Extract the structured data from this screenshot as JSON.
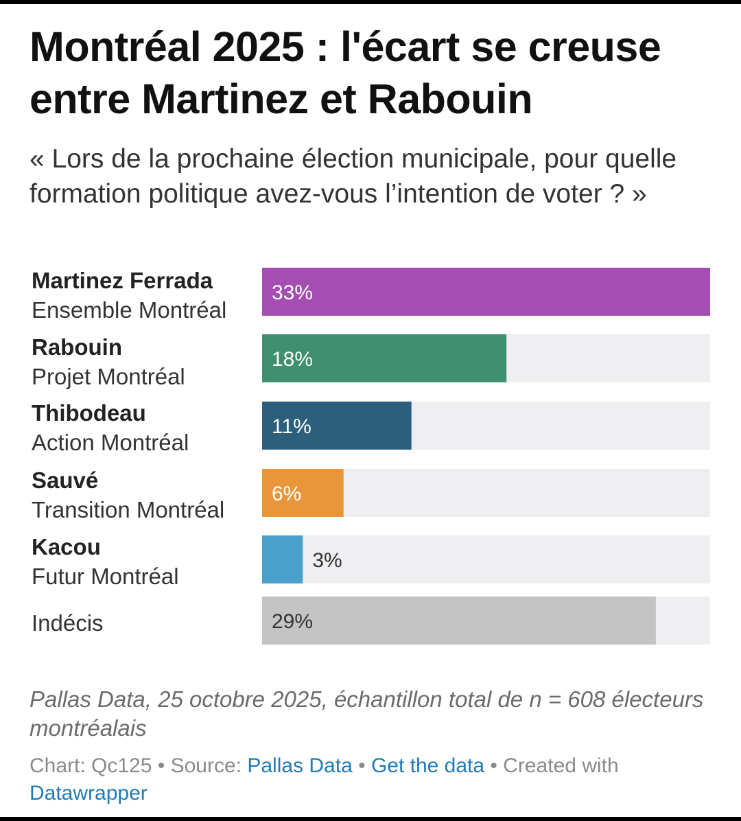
{
  "title": "Montréal 2025 : l'écart se creuse entre Martinez et Rabouin",
  "subtitle": "« Lors de la prochaine élection municipale, pour quelle formation politique avez-vous l’intention de voter ? »",
  "rows": [
    {
      "candidate": "Martinez Ferrada",
      "party": "Ensemble Montréal"
    },
    {
      "candidate": "Rabouin",
      "party": "Projet Montréal"
    },
    {
      "candidate": "Thibodeau",
      "party": "Action Montréal"
    },
    {
      "candidate": "Sauvé",
      "party": "Transition Montréal"
    },
    {
      "candidate": "Kacou",
      "party": "Futur Montréal"
    },
    {
      "candidate": "",
      "party": "Indécis"
    }
  ],
  "chart_data": {
    "type": "bar",
    "orientation": "horizontal",
    "categories": [
      "Martinez Ferrada",
      "Rabouin",
      "Thibodeau",
      "Sauvé",
      "Kacou",
      "Indécis"
    ],
    "values": [
      33,
      18,
      11,
      6,
      3,
      29
    ],
    "value_labels": [
      "33%",
      "18%",
      "11%",
      "6%",
      "3%",
      "29%"
    ],
    "colors": [
      "#a34eb0",
      "#3f8f71",
      "#2b5f7b",
      "#e8963a",
      "#4aa1cb",
      "#c4c4c4"
    ],
    "label_colors": [
      "#ffffff",
      "#ffffff",
      "#ffffff",
      "#ffffff",
      "#333333",
      "#333333"
    ],
    "track_color": "#efeff1",
    "xlim": [
      0,
      33
    ],
    "unit": "%"
  },
  "notes": "Pallas Data, 25 octobre 2025, échantillon total de n = 608 électeurs montréalais",
  "footer": {
    "chart_label": "Chart: Qc125",
    "source_label": "Source:",
    "source_link": "Pallas Data",
    "get_data": "Get the data",
    "created_with": "Created with",
    "tool": "Datawrapper"
  }
}
